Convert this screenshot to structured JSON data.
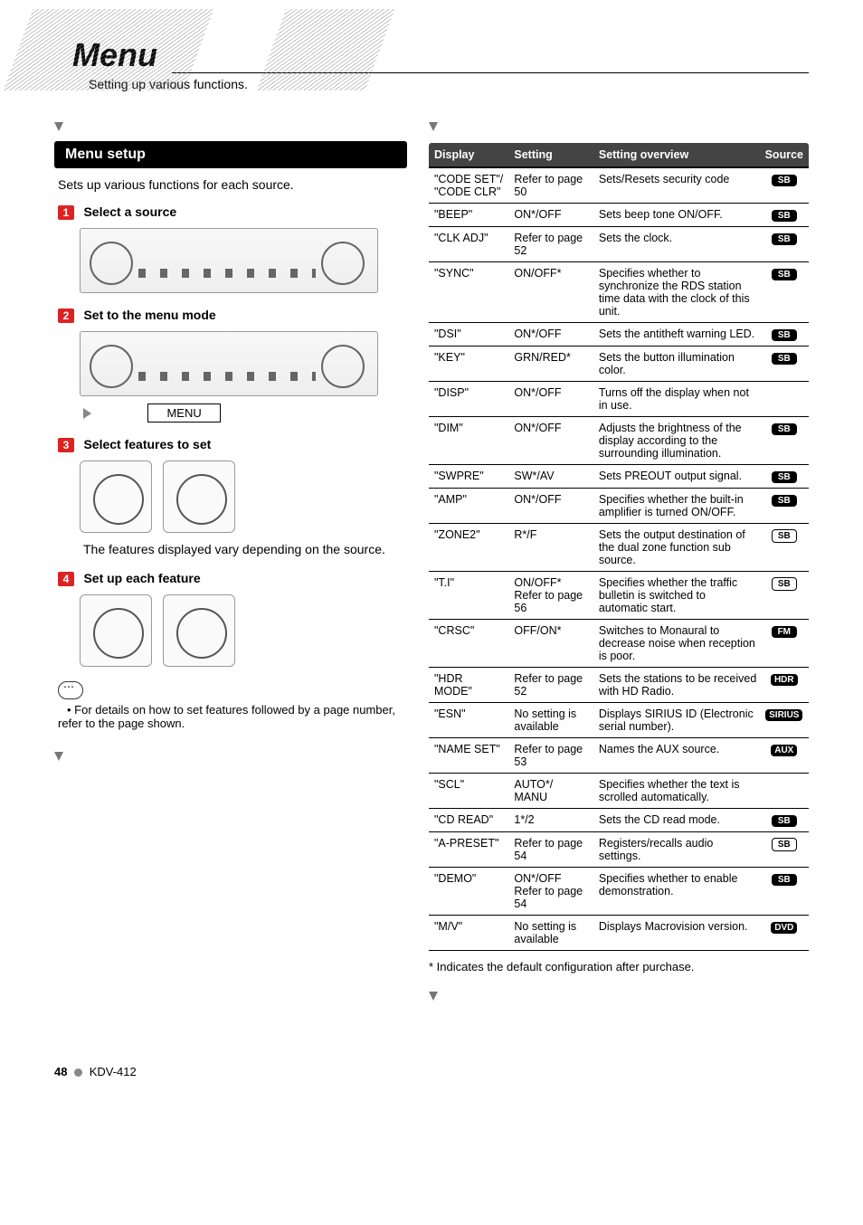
{
  "header": {
    "title": "Menu",
    "subtitle": "Setting up various functions."
  },
  "left": {
    "setup_header": "Menu setup",
    "setup_desc": "Sets up various functions for each source.",
    "steps": [
      {
        "num": "1",
        "title": "Select a source"
      },
      {
        "num": "2",
        "title": "Set to the menu mode"
      },
      {
        "num": "3",
        "title": "Select features to set"
      },
      {
        "num": "4",
        "title": "Set up each feature"
      }
    ],
    "menu_label": "MENU",
    "step3_note": "The features displayed vary depending on the source.",
    "footnote": "For details on how to set features followed by a page number, refer to the page shown."
  },
  "table": {
    "headers": {
      "c1": "Display",
      "c2": "Setting",
      "c3": "Setting overview",
      "c4": "Source"
    },
    "rows": [
      {
        "display": "\"CODE SET\"/ \"CODE CLR\"",
        "setting": "Refer to page 50",
        "overview": "Sets/Resets security code",
        "src": "SB",
        "style": "filled"
      },
      {
        "display": "\"BEEP\"",
        "setting": "ON*/OFF",
        "overview": "Sets beep tone ON/OFF.",
        "src": "SB",
        "style": "filled"
      },
      {
        "display": "\"CLK ADJ\"",
        "setting": "Refer to page 52",
        "overview": "Sets the clock.",
        "src": "SB",
        "style": "filled"
      },
      {
        "display": "\"SYNC\"",
        "setting": "ON/OFF*",
        "overview": "Specifies whether to synchronize the RDS station time data with the clock of this unit.",
        "src": "SB",
        "style": "filled"
      },
      {
        "display": "\"DSI\"",
        "setting": "ON*/OFF",
        "overview": "Sets the antitheft warning LED.",
        "src": "SB",
        "style": "filled"
      },
      {
        "display": "\"KEY\"",
        "setting": "GRN/RED*",
        "overview": "Sets the button illumination color.",
        "src": "SB",
        "style": "filled"
      },
      {
        "display": "\"DISP\"",
        "setting": "ON*/OFF",
        "overview": "Turns off the display when not in use.",
        "src": "",
        "style": ""
      },
      {
        "display": "\"DIM\"",
        "setting": "ON*/OFF",
        "overview": "Adjusts the brightness of the display according to the surrounding illumination.",
        "src": "SB",
        "style": "filled"
      },
      {
        "display": "\"SWPRE\"",
        "setting": "SW*/AV",
        "overview": "Sets PREOUT output signal.",
        "src": "SB",
        "style": "filled"
      },
      {
        "display": "\"AMP\"",
        "setting": "ON*/OFF",
        "overview": "Specifies whether the built-in amplifier is turned ON/OFF.",
        "src": "SB",
        "style": "filled"
      },
      {
        "display": "\"ZONE2\"",
        "setting": "R*/F",
        "overview": "Sets the output destination of the dual zone function sub source.",
        "src": "SB",
        "style": "outline"
      },
      {
        "display": "\"T.I\"",
        "setting": "ON/OFF* Refer to page 56",
        "overview": "Specifies whether the traffic bulletin is switched to automatic start.",
        "src": "SB",
        "style": "outline"
      },
      {
        "display": "\"CRSC\"",
        "setting": "OFF/ON*",
        "overview": "Switches to Monaural to decrease noise when reception is poor.",
        "src": "FM",
        "style": "filled"
      },
      {
        "display": "\"HDR MODE\"",
        "setting": "Refer to page 52",
        "overview": "Sets the stations to be received with HD Radio.",
        "src": "HDR",
        "style": "filled"
      },
      {
        "display": "\"ESN\"",
        "setting": "No setting is available",
        "overview": "Displays SIRIUS ID (Electronic serial number).",
        "src": "SIRIUS",
        "style": "filled"
      },
      {
        "display": "\"NAME SET\"",
        "setting": "Refer to page 53",
        "overview": "Names the AUX source.",
        "src": "AUX",
        "style": "filled"
      },
      {
        "display": "\"SCL\"",
        "setting": "AUTO*/ MANU",
        "overview": "Specifies whether the text is scrolled automatically.",
        "src": "",
        "style": ""
      },
      {
        "display": "\"CD READ\"",
        "setting": "1*/2",
        "overview": "Sets the CD read mode.",
        "src": "SB",
        "style": "filled"
      },
      {
        "display": "\"A-PRESET\"",
        "setting": "Refer to page 54",
        "overview": "Registers/recalls audio settings.",
        "src": "SB",
        "style": "outline"
      },
      {
        "display": "\"DEMO\"",
        "setting": "ON*/OFF Refer to page 54",
        "overview": "Specifies whether to enable demonstration.",
        "src": "SB",
        "style": "filled"
      },
      {
        "display": "\"M/V\"",
        "setting": "No setting is available",
        "overview": "Displays Macrovision version.",
        "src": "DVD",
        "style": "filled"
      }
    ],
    "note": "* Indicates the default configuration after purchase."
  },
  "footer": {
    "page": "48",
    "model": "KDV-412"
  }
}
